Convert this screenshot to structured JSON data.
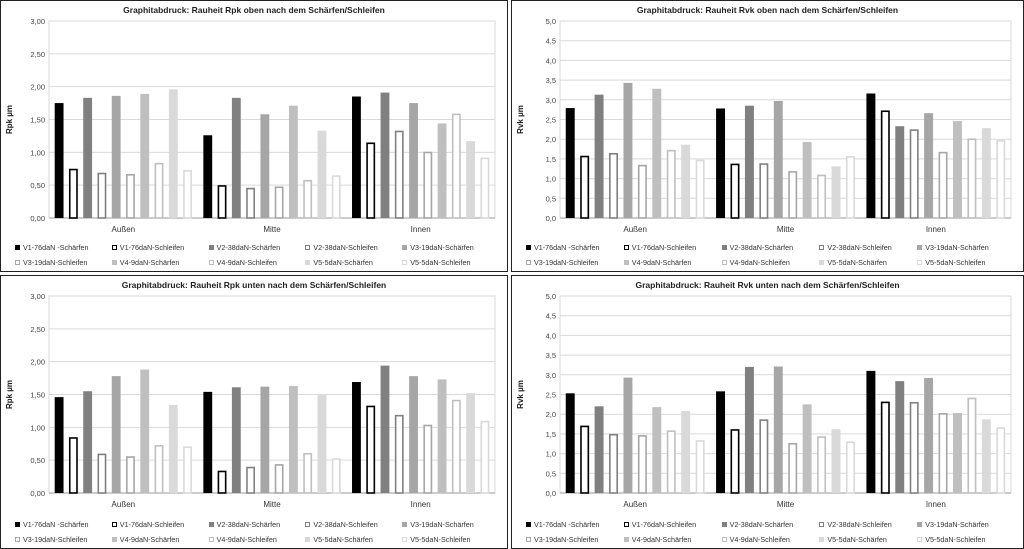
{
  "legend": [
    {
      "name": "V1-76daN -Schärfen",
      "fill": "#000000",
      "stroke": "#000000"
    },
    {
      "name": "V1-76daN-Schleifen",
      "fill": "#ffffff",
      "stroke": "#000000"
    },
    {
      "name": "V2-38daN-Schärfen",
      "fill": "#808080",
      "stroke": "#808080"
    },
    {
      "name": "V2-38daN-Schleifen",
      "fill": "#ffffff",
      "stroke": "#808080"
    },
    {
      "name": "V3-19daN-Schärfen",
      "fill": "#a6a6a6",
      "stroke": "#a6a6a6"
    },
    {
      "name": "V3-19daN-Schleifen",
      "fill": "#ffffff",
      "stroke": "#a6a6a6"
    },
    {
      "name": "V4-9daN-Schärfen",
      "fill": "#bfbfbf",
      "stroke": "#bfbfbf"
    },
    {
      "name": "V4-9daN-Schleifen",
      "fill": "#ffffff",
      "stroke": "#bfbfbf"
    },
    {
      "name": "V5-5daN-Schärfen",
      "fill": "#d9d9d9",
      "stroke": "#d9d9d9"
    },
    {
      "name": "V5-5daN-Schleifen",
      "fill": "#ffffff",
      "stroke": "#d9d9d9"
    }
  ],
  "chart_data": [
    {
      "type": "bar",
      "title": "Graphitabdruck: Rauheit Rpk oben nach dem Schärfen/Schleifen",
      "ylabel": "Rpk µm",
      "ylim": [
        0,
        3
      ],
      "ytick_labels": [
        "0,00",
        "0,50",
        "1,00",
        "1,50",
        "2,00",
        "2,50",
        "3,00"
      ],
      "categories": [
        "Außen",
        "Mitte",
        "Innen"
      ],
      "grid": true,
      "legend_position": "bottom",
      "series": [
        {
          "name": "V1-76daN -Schärfen",
          "values": [
            1.75,
            1.26,
            1.85
          ]
        },
        {
          "name": "V1-76daN-Schleifen",
          "values": [
            0.75,
            0.5,
            1.15
          ]
        },
        {
          "name": "V2-38daN-Schärfen",
          "values": [
            1.83,
            1.83,
            1.91
          ]
        },
        {
          "name": "V2-38daN-Schleifen",
          "values": [
            0.69,
            0.46,
            1.33
          ]
        },
        {
          "name": "V3-19daN-Schärfen",
          "values": [
            1.86,
            1.58,
            1.75
          ]
        },
        {
          "name": "V3-19daN-Schleifen",
          "values": [
            0.67,
            0.48,
            1.01
          ]
        },
        {
          "name": "V4-9daN-Schärfen",
          "values": [
            1.89,
            1.71,
            1.44
          ]
        },
        {
          "name": "V4-9daN-Schleifen",
          "values": [
            0.84,
            0.58,
            1.59
          ]
        },
        {
          "name": "V5-5daN-Schärfen",
          "values": [
            1.96,
            1.33,
            1.17
          ]
        },
        {
          "name": "V5-5daN-Schleifen",
          "values": [
            0.73,
            0.65,
            0.92
          ]
        }
      ]
    },
    {
      "type": "bar",
      "title": "Graphitabdruck: Rauheit Rvk oben nach dem Schärfen/Schleifen",
      "ylabel": "Rvk µm",
      "ylim": [
        0,
        5
      ],
      "ytick_labels": [
        "0,0",
        "0,5",
        "1,0",
        "1,5",
        "2,0",
        "2,5",
        "3,0",
        "3,5",
        "4,0",
        "4,5",
        "5,0"
      ],
      "categories": [
        "Außen",
        "Mitte",
        "Innen"
      ],
      "grid": true,
      "legend_position": "bottom",
      "series": [
        {
          "name": "V1-76daN -Schärfen",
          "values": [
            2.79,
            2.78,
            3.16
          ]
        },
        {
          "name": "V1-76daN-Schleifen",
          "values": [
            1.58,
            1.38,
            2.73
          ]
        },
        {
          "name": "V2-38daN-Schärfen",
          "values": [
            3.13,
            2.85,
            2.33
          ]
        },
        {
          "name": "V2-38daN-Schleifen",
          "values": [
            1.65,
            1.39,
            2.25
          ]
        },
        {
          "name": "V3-19daN-Schärfen",
          "values": [
            3.43,
            2.97,
            2.66
          ]
        },
        {
          "name": "V3-19daN-Schleifen",
          "values": [
            1.35,
            1.19,
            1.68
          ]
        },
        {
          "name": "V4-9daN-Schärfen",
          "values": [
            3.28,
            1.93,
            2.46
          ]
        },
        {
          "name": "V4-9daN-Schleifen",
          "values": [
            1.73,
            1.1,
            2.02
          ]
        },
        {
          "name": "V5-5daN-Schärfen",
          "values": [
            1.86,
            1.31,
            2.28
          ]
        },
        {
          "name": "V5-5daN-Schleifen",
          "values": [
            1.48,
            1.57,
            1.98
          ]
        }
      ]
    },
    {
      "type": "bar",
      "title": "Graphitabdruck: Rauheit Rpk unten nach dem Schärfen/Schleifen",
      "ylabel": "Rpk µm",
      "ylim": [
        0,
        3
      ],
      "ytick_labels": [
        "0,00",
        "0,50",
        "1,00",
        "1,50",
        "2,00",
        "2,50",
        "3,00"
      ],
      "categories": [
        "Außen",
        "Mitte",
        "Innen"
      ],
      "grid": true,
      "legend_position": "bottom",
      "series": [
        {
          "name": "V1-76daN -Schärfen",
          "values": [
            1.46,
            1.54,
            1.69
          ]
        },
        {
          "name": "V1-76daN-Schleifen",
          "values": [
            0.85,
            0.34,
            1.33
          ]
        },
        {
          "name": "V2-38daN-Schärfen",
          "values": [
            1.55,
            1.61,
            1.94
          ]
        },
        {
          "name": "V2-38daN-Schleifen",
          "values": [
            0.6,
            0.4,
            1.19
          ]
        },
        {
          "name": "V3-19daN-Schärfen",
          "values": [
            1.78,
            1.62,
            1.78
          ]
        },
        {
          "name": "V3-19daN-Schleifen",
          "values": [
            0.56,
            0.44,
            1.04
          ]
        },
        {
          "name": "V4-9daN-Schärfen",
          "values": [
            1.88,
            1.63,
            1.73
          ]
        },
        {
          "name": "V4-9daN-Schleifen",
          "values": [
            0.73,
            0.61,
            1.42
          ]
        },
        {
          "name": "V5-5daN-Schärfen",
          "values": [
            1.34,
            1.49,
            1.52
          ]
        },
        {
          "name": "V5-5daN-Schleifen",
          "values": [
            0.71,
            0.53,
            1.1
          ]
        }
      ]
    },
    {
      "type": "bar",
      "title": "Graphitabdruck: Rauheit Rvk unten nach dem Schärfen/Schleifen",
      "ylabel": "Rvk µm",
      "ylim": [
        0,
        5
      ],
      "ytick_labels": [
        "0,0",
        "0,5",
        "1,0",
        "1,5",
        "2,0",
        "2,5",
        "3,0",
        "3,5",
        "4,0",
        "4,5",
        "5,0"
      ],
      "categories": [
        "Außen",
        "Mitte",
        "Innen"
      ],
      "grid": true,
      "legend_position": "bottom",
      "series": [
        {
          "name": "V1-76daN -Schärfen",
          "values": [
            2.53,
            2.58,
            3.1
          ]
        },
        {
          "name": "V1-76daN-Schleifen",
          "values": [
            1.71,
            1.62,
            2.32
          ]
        },
        {
          "name": "V2-38daN-Schärfen",
          "values": [
            2.2,
            3.2,
            2.84
          ]
        },
        {
          "name": "V2-38daN-Schleifen",
          "values": [
            1.5,
            1.87,
            2.31
          ]
        },
        {
          "name": "V3-19daN-Schärfen",
          "values": [
            2.93,
            3.21,
            2.92
          ]
        },
        {
          "name": "V3-19daN-Schleifen",
          "values": [
            1.47,
            1.27,
            2.03
          ]
        },
        {
          "name": "V4-9daN-Schärfen",
          "values": [
            2.18,
            2.25,
            2.03
          ]
        },
        {
          "name": "V4-9daN-Schleifen",
          "values": [
            1.59,
            1.44,
            2.42
          ]
        },
        {
          "name": "V5-5daN-Schärfen",
          "values": [
            2.08,
            1.62,
            1.87
          ]
        },
        {
          "name": "V5-5daN-Schleifen",
          "values": [
            1.34,
            1.31,
            1.67
          ]
        }
      ]
    }
  ]
}
